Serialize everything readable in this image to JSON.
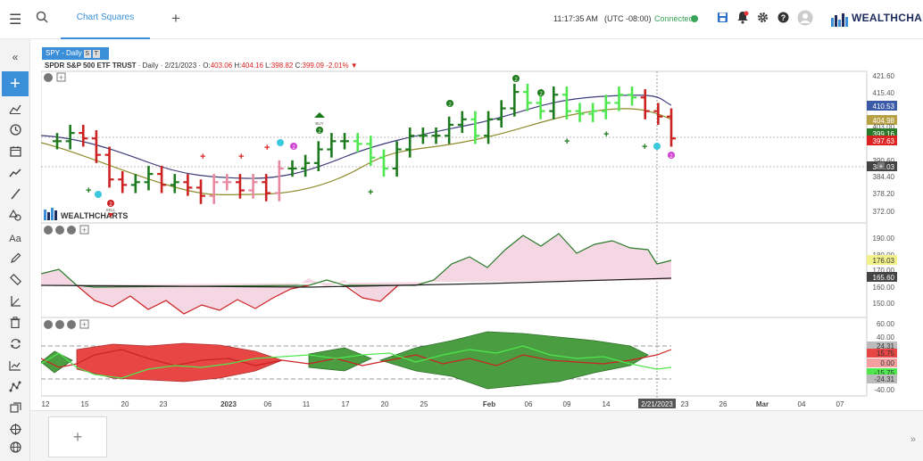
{
  "topbar": {
    "tab_label": "Chart Squares",
    "time": "11:17:35 AM",
    "timezone": "(UTC -08:00)",
    "connection_status": "Connected",
    "logo_text": "WEALTHCHARTS",
    "icons": [
      "menu-icon",
      "search-icon",
      "add-icon",
      "save-icon",
      "alert-bell-icon",
      "gear-icon",
      "help-icon",
      "user-avatar-icon"
    ]
  },
  "sidebar": {
    "icons": [
      "collapse-icon",
      "add-icon",
      "bar-style-icon",
      "clock-icon",
      "calendar-icon",
      "trend-icon",
      "line-icon",
      "shapes-icon",
      "text-icon",
      "pencil-icon",
      "ruler-icon",
      "angle-icon",
      "trash-icon",
      "sync-icon",
      "chart-icon",
      "node-icon",
      "layers-icon",
      "target-icon",
      "globe-icon"
    ]
  },
  "symbol_tab": {
    "label": "SPY - Daily",
    "badge1": "S",
    "badge2": "T"
  },
  "info": {
    "name": "SPDR S&P 500 ETF TRUST",
    "detail": " · Daily · 2/21/2023 ·",
    "o_label": "O:",
    "o_val": "403.06",
    "h_label": "H:",
    "h_val": "404.16",
    "l_label": "L:",
    "l_val": "398.82",
    "c_label": "C:",
    "c_val": "399.09",
    "chg": "-2.01%"
  },
  "watermark": "WEALTHCHARTS",
  "price_axis": [
    "421.60",
    "415.40",
    "410.53",
    "404.98",
    "403.00",
    "399.16",
    "397.63",
    "390.60",
    "388.03",
    "384.40",
    "378.20",
    "372.00"
  ],
  "price_axis_highlight": {
    "blue": "410.53",
    "olive": "404.98",
    "red": "397.63",
    "dark": "388.03",
    "green": "399.16"
  },
  "osc1_axis": [
    "190.00",
    "180.00",
    "176.03",
    "170.00",
    "165.60",
    "160.00",
    "150.00"
  ],
  "osc2_axis": [
    "60.00",
    "40.00",
    "24.31",
    "15.75",
    "0.00",
    "-15.75",
    "-24.31",
    "-40.00"
  ],
  "x_axis": [
    "12",
    "15",
    "20",
    "23",
    "2023",
    "06",
    "11",
    "17",
    "20",
    "25",
    "Feb",
    "06",
    "09",
    "14",
    "2/21/2023",
    "23",
    "26",
    "Mar",
    "04",
    "07"
  ],
  "markers": {
    "buy": "BUY",
    "sell": "SELL",
    "two": "2",
    "one": "1"
  },
  "bottom": {
    "add_label": "+",
    "collapse_label": "»"
  },
  "chart_data": {
    "type": "bar",
    "symbol": "SPY",
    "categories": [
      "12/12",
      "12/13",
      "12/14",
      "12/15",
      "12/16",
      "12/19",
      "12/20",
      "12/21",
      "12/22",
      "12/23",
      "12/27",
      "12/28",
      "12/29",
      "12/30",
      "1/3",
      "1/4",
      "1/5",
      "1/6",
      "1/9",
      "1/10",
      "1/11",
      "1/12",
      "1/13",
      "1/17",
      "1/18",
      "1/19",
      "1/20",
      "1/23",
      "1/24",
      "1/25",
      "1/26",
      "1/27",
      "1/30",
      "1/31",
      "2/1",
      "2/2",
      "2/3",
      "2/6",
      "2/7",
      "2/8",
      "2/9",
      "2/10",
      "2/13",
      "2/14",
      "2/15",
      "2/16",
      "2/17",
      "2/21"
    ],
    "close": [
      398,
      401,
      399,
      393,
      384,
      382,
      383,
      386,
      382,
      383,
      381,
      378,
      383,
      383,
      380,
      383,
      379,
      388,
      388,
      390,
      395,
      398,
      398,
      397,
      392,
      388,
      395,
      400,
      400,
      400,
      404,
      406,
      400,
      406,
      410,
      416,
      412,
      409,
      415,
      409,
      408,
      409,
      412,
      415,
      414,
      409,
      407,
      399
    ]
  }
}
